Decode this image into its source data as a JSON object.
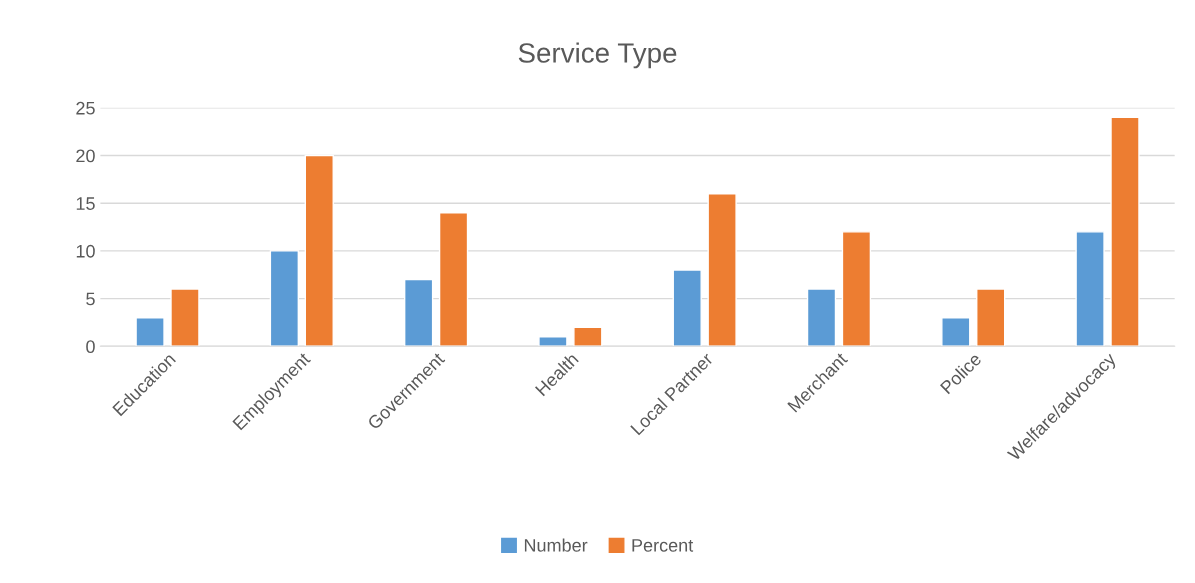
{
  "chart_data": {
    "type": "bar",
    "title": "Service Type",
    "categories": [
      "Education",
      "Employment",
      "Government",
      "Health",
      "Local Partner",
      "Merchant",
      "Police",
      "Welfare/advocacy"
    ],
    "series": [
      {
        "name": "Number",
        "color": "#5b9bd5",
        "values": [
          3,
          10,
          7,
          1,
          8,
          6,
          3,
          12
        ]
      },
      {
        "name": "Percent",
        "color": "#ed7d31",
        "values": [
          6,
          20,
          14,
          2,
          16,
          12,
          6,
          24
        ]
      }
    ],
    "ylim": [
      0,
      25
    ],
    "yticks": [
      0,
      5,
      10,
      15,
      20,
      25
    ],
    "grid": "y",
    "legend": "bottom"
  }
}
